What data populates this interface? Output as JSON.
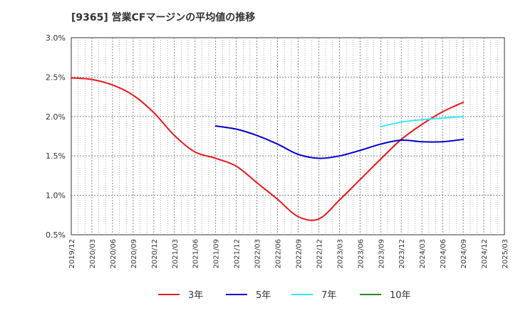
{
  "chart_data": {
    "type": "line",
    "title": "[9365]  営業CFマージンの平均値の推移",
    "x_ticks": [
      "2019/12",
      "2020/03",
      "2020/06",
      "2020/09",
      "2020/12",
      "2021/03",
      "2021/06",
      "2021/09",
      "2021/12",
      "2022/03",
      "2022/06",
      "2022/09",
      "2022/12",
      "2023/03",
      "2023/06",
      "2023/09",
      "2023/12",
      "2024/03",
      "2024/06",
      "2024/09",
      "2024/12",
      "2025/03"
    ],
    "y_ticks": [
      "0.5%",
      "1.0%",
      "1.5%",
      "2.0%",
      "2.5%",
      "3.0%"
    ],
    "ylim": [
      0.5,
      3.0
    ],
    "grid": true,
    "legend_position": "bottom",
    "series": [
      {
        "name": "3年",
        "color": "#e41a1c",
        "x": [
          "2019/12",
          "2020/03",
          "2020/06",
          "2020/09",
          "2020/12",
          "2021/03",
          "2021/06",
          "2021/09",
          "2021/12",
          "2022/03",
          "2022/06",
          "2022/09",
          "2022/12",
          "2023/03",
          "2023/06",
          "2023/09",
          "2023/12",
          "2024/03",
          "2024/06",
          "2024/09"
        ],
        "values": [
          2.49,
          2.47,
          2.4,
          2.27,
          2.05,
          1.76,
          1.55,
          1.47,
          1.37,
          1.16,
          0.95,
          0.73,
          0.7,
          0.94,
          1.2,
          1.46,
          1.71,
          1.9,
          2.06,
          2.18
        ]
      },
      {
        "name": "5年",
        "color": "#0000cc",
        "x": [
          "2021/09",
          "2021/12",
          "2022/03",
          "2022/06",
          "2022/09",
          "2022/12",
          "2023/03",
          "2023/06",
          "2023/09",
          "2023/12",
          "2024/03",
          "2024/06",
          "2024/09"
        ],
        "values": [
          1.88,
          1.84,
          1.76,
          1.65,
          1.52,
          1.47,
          1.5,
          1.57,
          1.65,
          1.7,
          1.68,
          1.68,
          1.71
        ]
      },
      {
        "name": "7年",
        "color": "#33e6ff",
        "x": [
          "2023/09",
          "2023/12",
          "2024/03",
          "2024/06",
          "2024/09"
        ],
        "values": [
          1.87,
          1.93,
          1.96,
          1.98,
          2.0
        ]
      },
      {
        "name": "10年",
        "color": "#228b22",
        "x": [],
        "values": []
      }
    ]
  }
}
